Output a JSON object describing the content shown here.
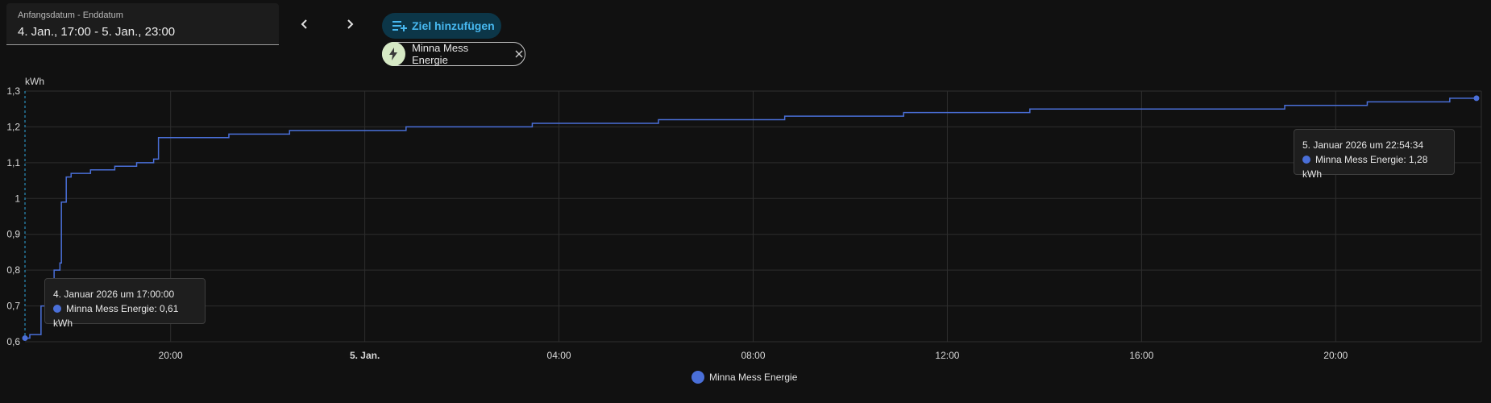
{
  "date_picker": {
    "label": "Anfangsdatum - Enddatum",
    "value": "4. Jan., 17:00 - 5. Jan., 23:00"
  },
  "nav": {
    "prev_icon": "chevron-left-icon",
    "next_icon": "chevron-right-icon"
  },
  "add_target": {
    "label": "Ziel hinzufügen",
    "icon": "playlist-plus-icon",
    "color": "#47b8f0",
    "bg": "#0c3648"
  },
  "entity_chip": {
    "label": "Minna Mess Energie",
    "icon": "lightning-bolt-icon",
    "close_icon": "close-icon"
  },
  "series_color": "#4a6fd8",
  "tooltips": [
    {
      "title": "4. Januar 2026 um 17:00:00",
      "text": "Minna Mess Energie: 0,61 kWh"
    },
    {
      "title": "5. Januar 2026 um 22:54:34",
      "text": "Minna Mess Energie: 1,28 kWh"
    }
  ],
  "legend": {
    "label": "Minna Mess Energie"
  },
  "chart_data": {
    "type": "line",
    "step": true,
    "ylabel": "kWh",
    "ylim": [
      0.6,
      1.3
    ],
    "y_ticks": [
      "0,6",
      "0,7",
      "0,8",
      "0,9",
      "1",
      "1,1",
      "1,2",
      "1,3"
    ],
    "x_ticks": [
      "20:00",
      "5. Jan.",
      "04:00",
      "08:00",
      "12:00",
      "16:00",
      "20:00"
    ],
    "x_tick_bold": [
      false,
      true,
      false,
      false,
      false,
      false,
      false
    ],
    "x_range": [
      "4. Jan. 17:00",
      "5. Jan. 23:00"
    ],
    "grid": true,
    "legend_position": "bottom-center",
    "series": [
      {
        "name": "Minna Mess Energie",
        "x_hours_from_start": [
          0,
          0.1,
          0.33,
          0.6,
          0.72,
          0.75,
          0.85,
          0.95,
          1.1,
          1.35,
          1.85,
          2.3,
          2.65,
          2.75,
          3.05,
          4.2,
          5.45,
          7.85,
          10.45,
          13.05,
          15.65,
          18.1,
          20.7,
          23.3,
          25.95,
          27.65,
          29.35,
          29.9
        ],
        "values": [
          0.61,
          0.62,
          0.7,
          0.8,
          0.82,
          0.99,
          1.06,
          1.07,
          1.07,
          1.08,
          1.09,
          1.1,
          1.11,
          1.17,
          1.17,
          1.18,
          1.19,
          1.2,
          1.21,
          1.22,
          1.23,
          1.24,
          1.25,
          1.25,
          1.26,
          1.27,
          1.28,
          1.28
        ]
      }
    ]
  }
}
